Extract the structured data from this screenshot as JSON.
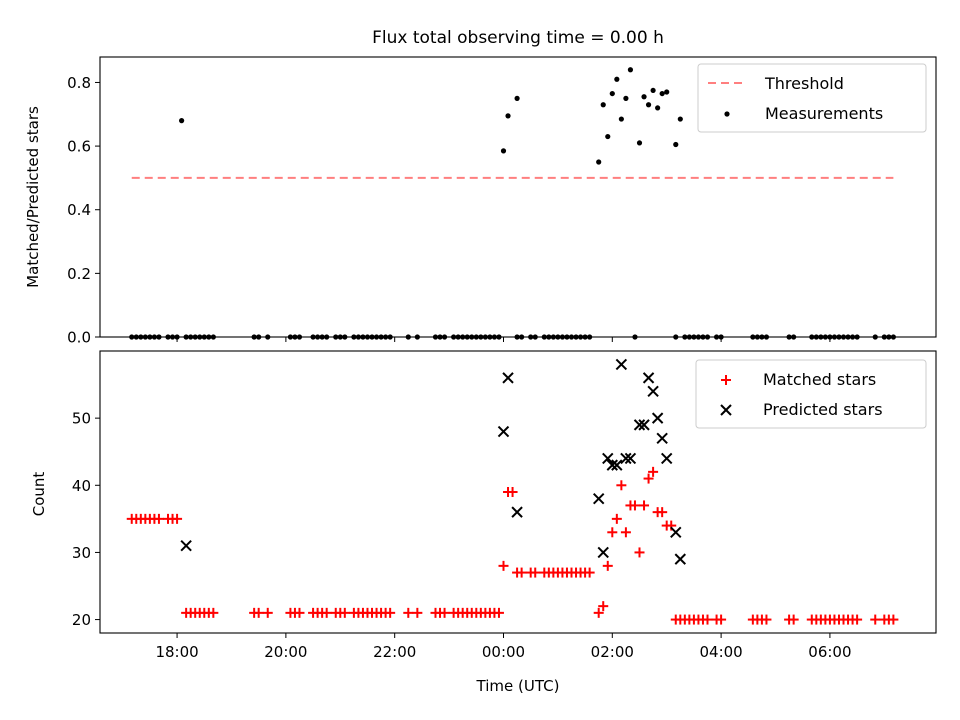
{
  "title": "Flux total observing time = 0.00 h",
  "chart_data": [
    {
      "type": "scatter",
      "ylabel": "Matched/Predicted stars",
      "xlabel": "",
      "ylim": [
        0,
        0.88
      ],
      "xlim": [
        "16:35",
        "07:57"
      ],
      "yticks": [
        0.0,
        0.2,
        0.4,
        0.6,
        0.8
      ],
      "ytick_labels": [
        "0.0",
        "0.2",
        "0.4",
        "0.6",
        "0.8"
      ],
      "grid": false,
      "legend": "top-right",
      "threshold": {
        "name": "Threshold",
        "value": 0.5,
        "x": [
          "17:10",
          "07:10"
        ],
        "color": "#ff7f7f",
        "style": "dashed"
      },
      "series": [
        {
          "name": "Measurements",
          "color": "#000000",
          "marker": "dot",
          "points": [
            [
              "18:05",
              0.68
            ],
            [
              "00:00",
              0.585
            ],
            [
              "00:05",
              0.695
            ],
            [
              "00:15",
              0.75
            ],
            [
              "01:45",
              0.55
            ],
            [
              "01:50",
              0.73
            ],
            [
              "01:55",
              0.63
            ],
            [
              "02:00",
              0.765
            ],
            [
              "02:05",
              0.81
            ],
            [
              "02:10",
              0.685
            ],
            [
              "02:15",
              0.75
            ],
            [
              "02:20",
              0.84
            ],
            [
              "02:30",
              0.61
            ],
            [
              "02:35",
              0.755
            ],
            [
              "02:40",
              0.73
            ],
            [
              "02:45",
              0.775
            ],
            [
              "02:50",
              0.72
            ],
            [
              "02:55",
              0.765
            ],
            [
              "03:00",
              0.77
            ],
            [
              "03:10",
              0.605
            ],
            [
              "03:15",
              0.685
            ]
          ],
          "zero_times": [
            "17:10",
            "17:15",
            "17:20",
            "17:25",
            "17:30",
            "17:35",
            "17:40",
            "17:50",
            "17:55",
            "18:00",
            "18:10",
            "18:15",
            "18:20",
            "18:25",
            "18:30",
            "18:35",
            "18:40",
            "19:25",
            "19:30",
            "19:40",
            "20:05",
            "20:10",
            "20:15",
            "20:30",
            "20:35",
            "20:40",
            "20:45",
            "20:55",
            "21:00",
            "21:05",
            "21:15",
            "21:20",
            "21:25",
            "21:30",
            "21:35",
            "21:40",
            "21:45",
            "21:50",
            "21:55",
            "22:15",
            "22:25",
            "22:45",
            "22:50",
            "22:55",
            "23:05",
            "23:10",
            "23:15",
            "23:20",
            "23:25",
            "23:30",
            "23:35",
            "23:40",
            "23:45",
            "23:50",
            "23:55",
            "00:15",
            "00:20",
            "00:30",
            "00:35",
            "00:45",
            "00:50",
            "00:55",
            "01:00",
            "01:05",
            "01:10",
            "01:15",
            "01:20",
            "01:25",
            "01:30",
            "01:35",
            "02:25",
            "03:10",
            "03:20",
            "03:25",
            "03:30",
            "03:35",
            "03:40",
            "03:45",
            "03:55",
            "04:00",
            "04:35",
            "04:40",
            "04:45",
            "04:50",
            "05:15",
            "05:20",
            "05:40",
            "05:45",
            "05:50",
            "05:55",
            "06:00",
            "06:05",
            "06:10",
            "06:15",
            "06:20",
            "06:25",
            "06:30",
            "06:50",
            "07:00",
            "07:05",
            "07:10"
          ]
        }
      ]
    },
    {
      "type": "scatter",
      "ylabel": "Count",
      "xlabel": "Time (UTC)",
      "ylim": [
        18,
        60
      ],
      "xlim": [
        "16:35",
        "07:57"
      ],
      "yticks": [
        20,
        30,
        40,
        50
      ],
      "ytick_labels": [
        "20",
        "30",
        "40",
        "50"
      ],
      "xticks": [
        "18:00",
        "20:00",
        "22:00",
        "00:00",
        "02:00",
        "04:00",
        "06:00"
      ],
      "xtick_labels": [
        "18:00",
        "20:00",
        "22:00",
        "00:00",
        "02:00",
        "04:00",
        "06:00"
      ],
      "grid": false,
      "legend": "top-right",
      "series": [
        {
          "name": "Matched stars",
          "color": "#ff0000",
          "marker": "plus",
          "points": [
            [
              "17:10",
              35
            ],
            [
              "17:15",
              35
            ],
            [
              "17:20",
              35
            ],
            [
              "17:25",
              35
            ],
            [
              "17:30",
              35
            ],
            [
              "17:35",
              35
            ],
            [
              "17:40",
              35
            ],
            [
              "17:50",
              35
            ],
            [
              "17:55",
              35
            ],
            [
              "18:00",
              35
            ],
            [
              "18:10",
              21
            ],
            [
              "18:15",
              21
            ],
            [
              "18:20",
              21
            ],
            [
              "18:25",
              21
            ],
            [
              "18:30",
              21
            ],
            [
              "18:35",
              21
            ],
            [
              "18:40",
              21
            ],
            [
              "19:25",
              21
            ],
            [
              "19:30",
              21
            ],
            [
              "19:40",
              21
            ],
            [
              "20:05",
              21
            ],
            [
              "20:10",
              21
            ],
            [
              "20:15",
              21
            ],
            [
              "20:30",
              21
            ],
            [
              "20:35",
              21
            ],
            [
              "20:40",
              21
            ],
            [
              "20:45",
              21
            ],
            [
              "20:55",
              21
            ],
            [
              "21:00",
              21
            ],
            [
              "21:05",
              21
            ],
            [
              "21:15",
              21
            ],
            [
              "21:20",
              21
            ],
            [
              "21:25",
              21
            ],
            [
              "21:30",
              21
            ],
            [
              "21:35",
              21
            ],
            [
              "21:40",
              21
            ],
            [
              "21:45",
              21
            ],
            [
              "21:50",
              21
            ],
            [
              "21:55",
              21
            ],
            [
              "22:15",
              21
            ],
            [
              "22:25",
              21
            ],
            [
              "22:45",
              21
            ],
            [
              "22:50",
              21
            ],
            [
              "22:55",
              21
            ],
            [
              "23:05",
              21
            ],
            [
              "23:10",
              21
            ],
            [
              "23:15",
              21
            ],
            [
              "23:20",
              21
            ],
            [
              "23:25",
              21
            ],
            [
              "23:30",
              21
            ],
            [
              "23:35",
              21
            ],
            [
              "23:40",
              21
            ],
            [
              "23:45",
              21
            ],
            [
              "23:50",
              21
            ],
            [
              "23:55",
              21
            ],
            [
              "00:00",
              28
            ],
            [
              "00:05",
              39
            ],
            [
              "00:10",
              39
            ],
            [
              "00:15",
              27
            ],
            [
              "00:20",
              27
            ],
            [
              "00:30",
              27
            ],
            [
              "00:35",
              27
            ],
            [
              "00:45",
              27
            ],
            [
              "00:50",
              27
            ],
            [
              "00:55",
              27
            ],
            [
              "01:00",
              27
            ],
            [
              "01:05",
              27
            ],
            [
              "01:10",
              27
            ],
            [
              "01:15",
              27
            ],
            [
              "01:20",
              27
            ],
            [
              "01:25",
              27
            ],
            [
              "01:30",
              27
            ],
            [
              "01:35",
              27
            ],
            [
              "01:45",
              21
            ],
            [
              "01:50",
              22
            ],
            [
              "01:55",
              28
            ],
            [
              "02:00",
              33
            ],
            [
              "02:05",
              35
            ],
            [
              "02:10",
              40
            ],
            [
              "02:15",
              33
            ],
            [
              "02:20",
              37
            ],
            [
              "02:25",
              37
            ],
            [
              "02:30",
              30
            ],
            [
              "02:35",
              37
            ],
            [
              "02:40",
              41
            ],
            [
              "02:45",
              42
            ],
            [
              "02:50",
              36
            ],
            [
              "02:55",
              36
            ],
            [
              "03:00",
              34
            ],
            [
              "03:05",
              34
            ],
            [
              "03:10",
              20
            ],
            [
              "03:15",
              20
            ],
            [
              "03:20",
              20
            ],
            [
              "03:25",
              20
            ],
            [
              "03:30",
              20
            ],
            [
              "03:35",
              20
            ],
            [
              "03:40",
              20
            ],
            [
              "03:45",
              20
            ],
            [
              "03:55",
              20
            ],
            [
              "04:00",
              20
            ],
            [
              "04:35",
              20
            ],
            [
              "04:40",
              20
            ],
            [
              "04:45",
              20
            ],
            [
              "04:50",
              20
            ],
            [
              "05:15",
              20
            ],
            [
              "05:20",
              20
            ],
            [
              "05:40",
              20
            ],
            [
              "05:45",
              20
            ],
            [
              "05:50",
              20
            ],
            [
              "05:55",
              20
            ],
            [
              "06:00",
              20
            ],
            [
              "06:05",
              20
            ],
            [
              "06:10",
              20
            ],
            [
              "06:15",
              20
            ],
            [
              "06:20",
              20
            ],
            [
              "06:25",
              20
            ],
            [
              "06:30",
              20
            ],
            [
              "06:50",
              20
            ],
            [
              "07:00",
              20
            ],
            [
              "07:05",
              20
            ],
            [
              "07:10",
              20
            ]
          ]
        },
        {
          "name": "Predicted stars",
          "color": "#000000",
          "marker": "x",
          "points": [
            [
              "18:10",
              31
            ],
            [
              "00:00",
              48
            ],
            [
              "00:05",
              56
            ],
            [
              "00:15",
              36
            ],
            [
              "01:45",
              38
            ],
            [
              "01:50",
              30
            ],
            [
              "01:55",
              44
            ],
            [
              "02:00",
              43
            ],
            [
              "02:05",
              43
            ],
            [
              "02:10",
              58
            ],
            [
              "02:15",
              44
            ],
            [
              "02:20",
              44
            ],
            [
              "02:30",
              49
            ],
            [
              "02:35",
              49
            ],
            [
              "02:40",
              56
            ],
            [
              "02:45",
              54
            ],
            [
              "02:50",
              50
            ],
            [
              "02:55",
              47
            ],
            [
              "03:00",
              44
            ],
            [
              "03:10",
              33
            ],
            [
              "03:15",
              29
            ]
          ]
        }
      ]
    }
  ]
}
